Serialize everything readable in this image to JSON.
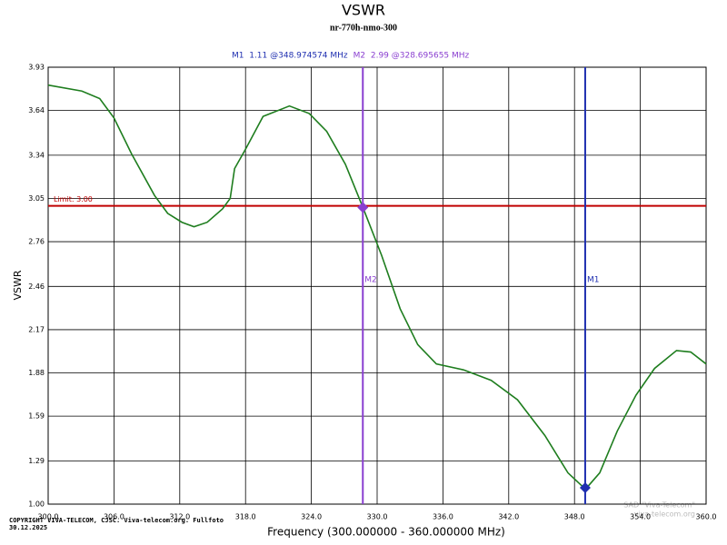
{
  "chart_data": {
    "type": "line",
    "title": "VSWR",
    "subtitle": "nr-770h-nmo-300",
    "xlabel": "Frequency (300.000000 - 360.000000 MHz)",
    "ylabel": "VSWR",
    "xlim": [
      300,
      360
    ],
    "ylim": [
      1,
      3.93
    ],
    "xticks": [
      {
        "value": 300,
        "label": "300.0"
      },
      {
        "value": 306,
        "label": "306.0"
      },
      {
        "value": 312,
        "label": "312.0"
      },
      {
        "value": 318,
        "label": "318.0"
      },
      {
        "value": 324,
        "label": "324.0"
      },
      {
        "value": 330,
        "label": "330.0"
      },
      {
        "value": 336,
        "label": "336.0"
      },
      {
        "value": 342,
        "label": "342.0"
      },
      {
        "value": 348,
        "label": "348.0"
      },
      {
        "value": 354,
        "label": "354.0"
      },
      {
        "value": 360,
        "label": "360.0"
      }
    ],
    "yticks": [
      {
        "value": 1,
        "label": "1.00"
      },
      1.29,
      1.59,
      1.88,
      2.17,
      2.46,
      2.76,
      3.05,
      3.34,
      3.64,
      3.93
    ],
    "grid": true,
    "series": [
      {
        "name": "VSWR",
        "color": "#1e7d1e",
        "x": [
          300,
          303.07,
          304.7,
          306.0,
          307.6,
          309.7,
          310.9,
          312.2,
          313.3,
          314.5,
          315.9,
          316.6,
          317.0,
          318.0,
          319.6,
          322.0,
          323.8,
          325.4,
          327.1,
          328.7,
          330.4,
          332.1,
          333.7,
          335.4,
          337.9,
          340.4,
          342.8,
          345.3,
          347.4,
          349.0,
          350.3,
          351.9,
          353.6,
          355.3,
          357.3,
          358.6,
          360.0
        ],
        "values": [
          3.81,
          3.77,
          3.72,
          3.59,
          3.35,
          3.07,
          2.95,
          2.89,
          2.86,
          2.89,
          2.98,
          3.05,
          3.25,
          3.38,
          3.6,
          3.67,
          3.62,
          3.5,
          3.28,
          2.99,
          2.67,
          2.31,
          2.07,
          1.94,
          1.9,
          1.83,
          1.7,
          1.46,
          1.21,
          1.1,
          1.21,
          1.49,
          1.73,
          1.91,
          2.03,
          2.02,
          1.94
        ]
      }
    ],
    "limit": {
      "label": "Limit: 3.00",
      "value": 3,
      "color": "#c00000"
    },
    "markers": [
      {
        "name": "M1",
        "x": 348.974574,
        "y": 1.11,
        "readout": "M1  1.11 @348.974574 MHz",
        "color": "#1f2fb0"
      },
      {
        "name": "M2",
        "x": 328.695655,
        "y": 2.99,
        "readout": "M2  2.99 @328.695655 MHz",
        "color": "#8a3fd0"
      }
    ],
    "copyright": [
      "COPYRIGHT VIVA-TELECOM, CJSC. Viva-telecom.org. Fullfoto",
      "30.12.2025"
    ],
    "watermark": [
      "SAD \"Viva-Telecom\"",
      "viva-telecom.org"
    ]
  }
}
